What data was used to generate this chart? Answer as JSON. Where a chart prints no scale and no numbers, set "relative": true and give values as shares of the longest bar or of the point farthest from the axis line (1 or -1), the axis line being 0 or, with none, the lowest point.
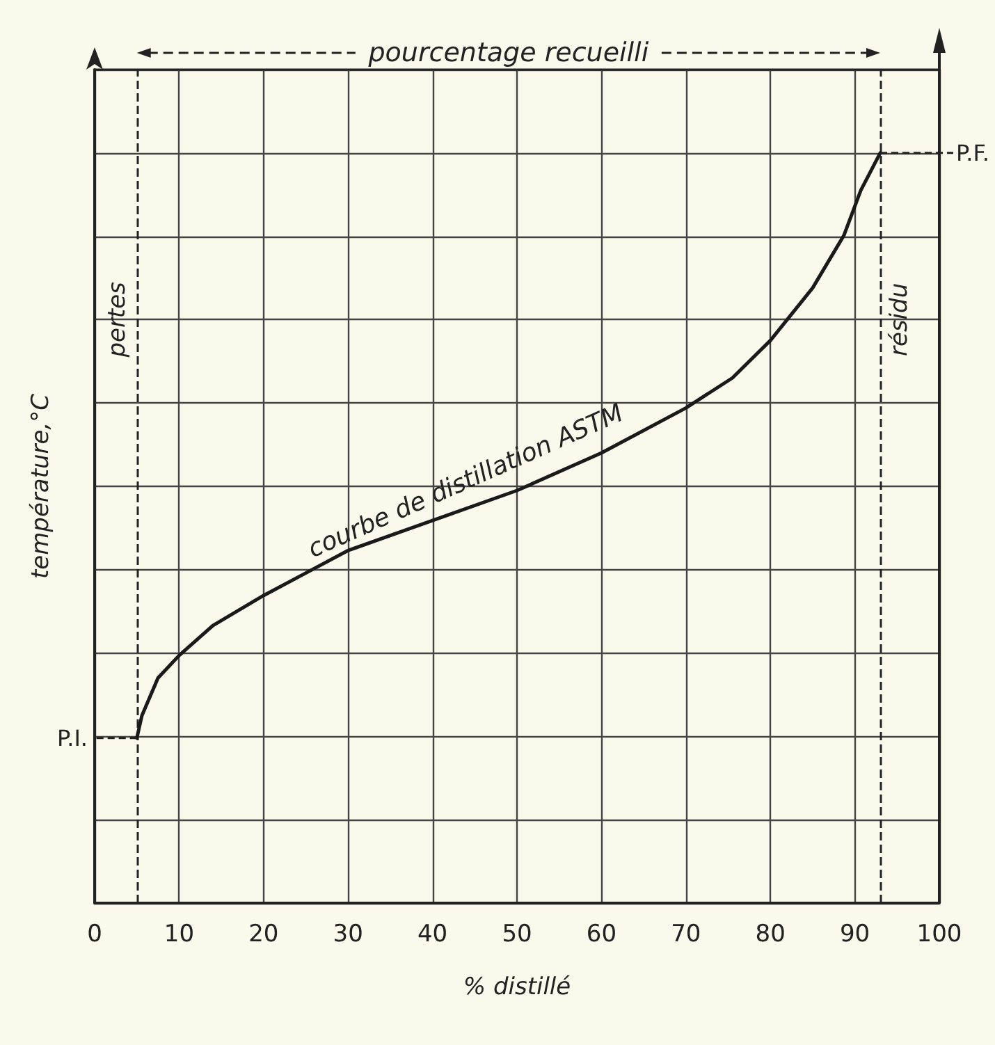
{
  "chart_data": {
    "type": "line",
    "relative": true,
    "xlabel": "% distillé",
    "ylabel": "température,°C",
    "x": [
      5,
      5.6,
      7.5,
      10,
      14,
      20,
      25,
      30,
      40,
      50,
      60,
      70,
      75.5,
      80,
      85,
      88.7,
      90.7,
      93
    ],
    "series": [
      {
        "name": "courbe de distillation ASTM",
        "color": "#1a1a1a",
        "values": [
          0.22,
          0.25,
          0.3,
          0.33,
          0.37,
          0.41,
          0.44,
          0.47,
          0.51,
          0.55,
          0.6,
          0.66,
          0.7,
          0.75,
          0.82,
          0.89,
          0.95,
          1
        ]
      }
    ],
    "xlim": [
      0,
      100
    ],
    "xticks": [
      0,
      10,
      20,
      30,
      40,
      50,
      60,
      70,
      80,
      90,
      100
    ],
    "ref_lines": [
      {
        "axis": "x",
        "value": 5,
        "label": "pertes",
        "line_style": "dashed"
      },
      {
        "axis": "x",
        "value": 93,
        "label": "résidu",
        "line_style": "dashed"
      }
    ],
    "annotations": [
      "pourcentage recueilli",
      {
        "text": "P.I.",
        "x": 5,
        "y": 0.22
      },
      "P.F."
    ],
    "grid": true,
    "marker": "none",
    "line_style": "solid",
    "legend": false
  }
}
